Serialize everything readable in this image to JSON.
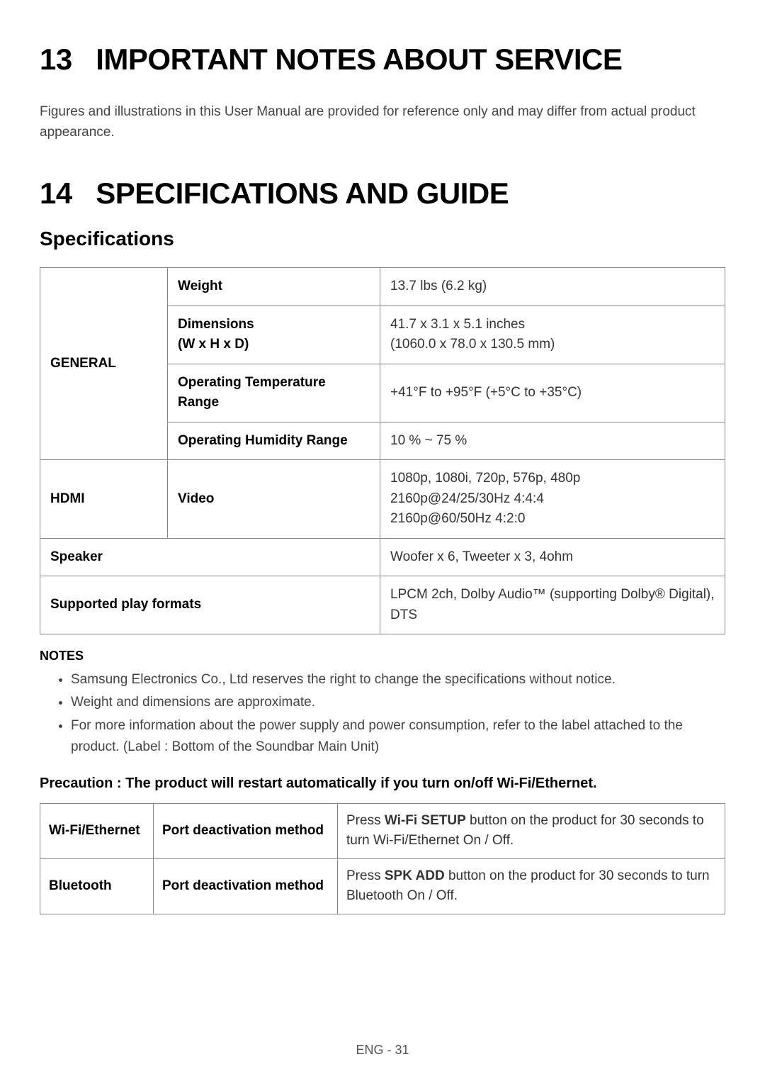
{
  "section13": {
    "number": "13",
    "title": "IMPORTANT NOTES ABOUT SERVICE",
    "text": "Figures and illustrations in this User Manual are provided for reference only and may differ from actual product appearance."
  },
  "section14": {
    "number": "14",
    "title": "SPECIFICATIONS AND GUIDE",
    "subtitle": "Specifications"
  },
  "spec_table": {
    "general": {
      "category": "GENERAL",
      "rows": [
        {
          "label": "Weight",
          "value": "13.7 lbs (6.2 kg)"
        },
        {
          "label_line1": "Dimensions",
          "label_line2": "(W x H x D)",
          "value_line1": "41.7 x 3.1 x 5.1 inches",
          "value_line2": "(1060.0 x 78.0 x 130.5 mm)"
        },
        {
          "label": "Operating Temperature Range",
          "value": "+41°F to +95°F (+5°C to +35°C)"
        },
        {
          "label": "Operating Humidity Range",
          "value": "10 % ~ 75 %"
        }
      ]
    },
    "hdmi": {
      "category": "HDMI",
      "label": "Video",
      "value_line1": "1080p, 1080i, 720p, 576p, 480p",
      "value_line2": "2160p@24/25/30Hz 4:4:4",
      "value_line3": "2160p@60/50Hz 4:2:0"
    },
    "speaker": {
      "label": "Speaker",
      "value": "Woofer x 6, Tweeter x 3, 4ohm"
    },
    "formats": {
      "label": "Supported play formats",
      "value": "LPCM 2ch, Dolby Audio™ (supporting Dolby® Digital), DTS"
    }
  },
  "notes": {
    "heading": "NOTES",
    "items": [
      "Samsung Electronics Co., Ltd reserves the right to change the specifications without notice.",
      "Weight and dimensions are approximate.",
      "For more information about the power supply and power consumption, refer to the label attached to the product. (Label : Bottom of the Soundbar Main Unit)"
    ]
  },
  "precaution": "Precaution : The product will restart automatically if you turn on/off Wi-Fi/Ethernet.",
  "port_table": {
    "rows": [
      {
        "category": "Wi-Fi/Ethernet",
        "label": "Port deactivation method",
        "pre": "Press ",
        "bold": "Wi-Fi SETUP",
        "post": " button on the product for 30 seconds to turn Wi-Fi/Ethernet On / Off."
      },
      {
        "category": "Bluetooth",
        "label": "Port deactivation method",
        "pre": "Press ",
        "bold": "SPK ADD",
        "post": " button on the product for 30 seconds to turn Bluetooth On / Off."
      }
    ]
  },
  "footer": "ENG - 31"
}
